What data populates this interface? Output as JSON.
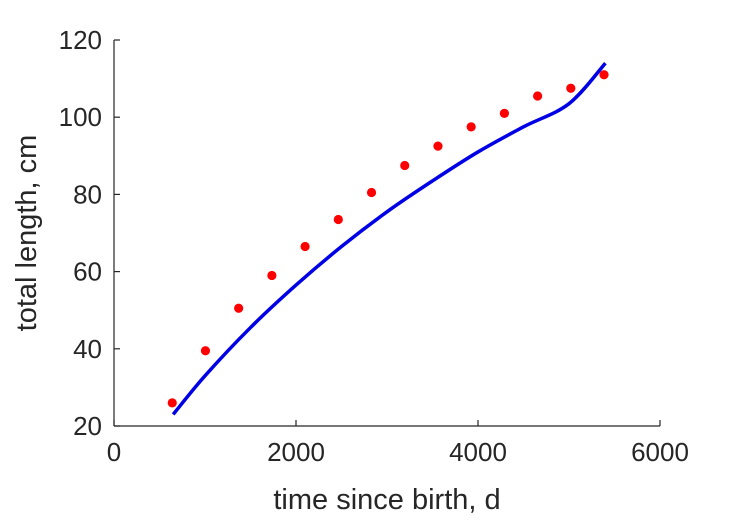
{
  "chart_data": {
    "type": "scatter",
    "xlabel": "time since birth, d",
    "ylabel": "total length, cm",
    "xlim": [
      0,
      6000
    ],
    "ylim": [
      20,
      120
    ],
    "xticks": [
      0,
      2000,
      4000,
      6000
    ],
    "yticks": [
      20,
      40,
      60,
      80,
      100,
      120
    ],
    "xtick_labels": [
      "0",
      "2000",
      "4000",
      "6000"
    ],
    "ytick_labels": [
      "20",
      "40",
      "60",
      "80",
      "100",
      "120"
    ],
    "grid": false,
    "colors": {
      "points": "#ff0000",
      "curve": "#0000e6",
      "axes": "#262626"
    },
    "series": [
      {
        "kind": "points",
        "x": [
          640,
          1005,
          1370,
          1735,
          2100,
          2465,
          2830,
          3195,
          3560,
          3925,
          4290,
          4655,
          5020,
          5385
        ],
        "y": [
          26,
          39.5,
          50.5,
          59,
          66.5,
          73.5,
          80.5,
          87.5,
          92.5,
          97.5,
          101,
          105.5,
          107.5,
          111
        ]
      },
      {
        "kind": "line",
        "x": [
          650,
          1000,
          1500,
          2000,
          2500,
          3000,
          3500,
          4000,
          4500,
          5000,
          5400
        ],
        "y": [
          23,
          33,
          45.5,
          56.5,
          66.5,
          75.5,
          83.5,
          91,
          97.5,
          103.5,
          114
        ]
      }
    ]
  }
}
